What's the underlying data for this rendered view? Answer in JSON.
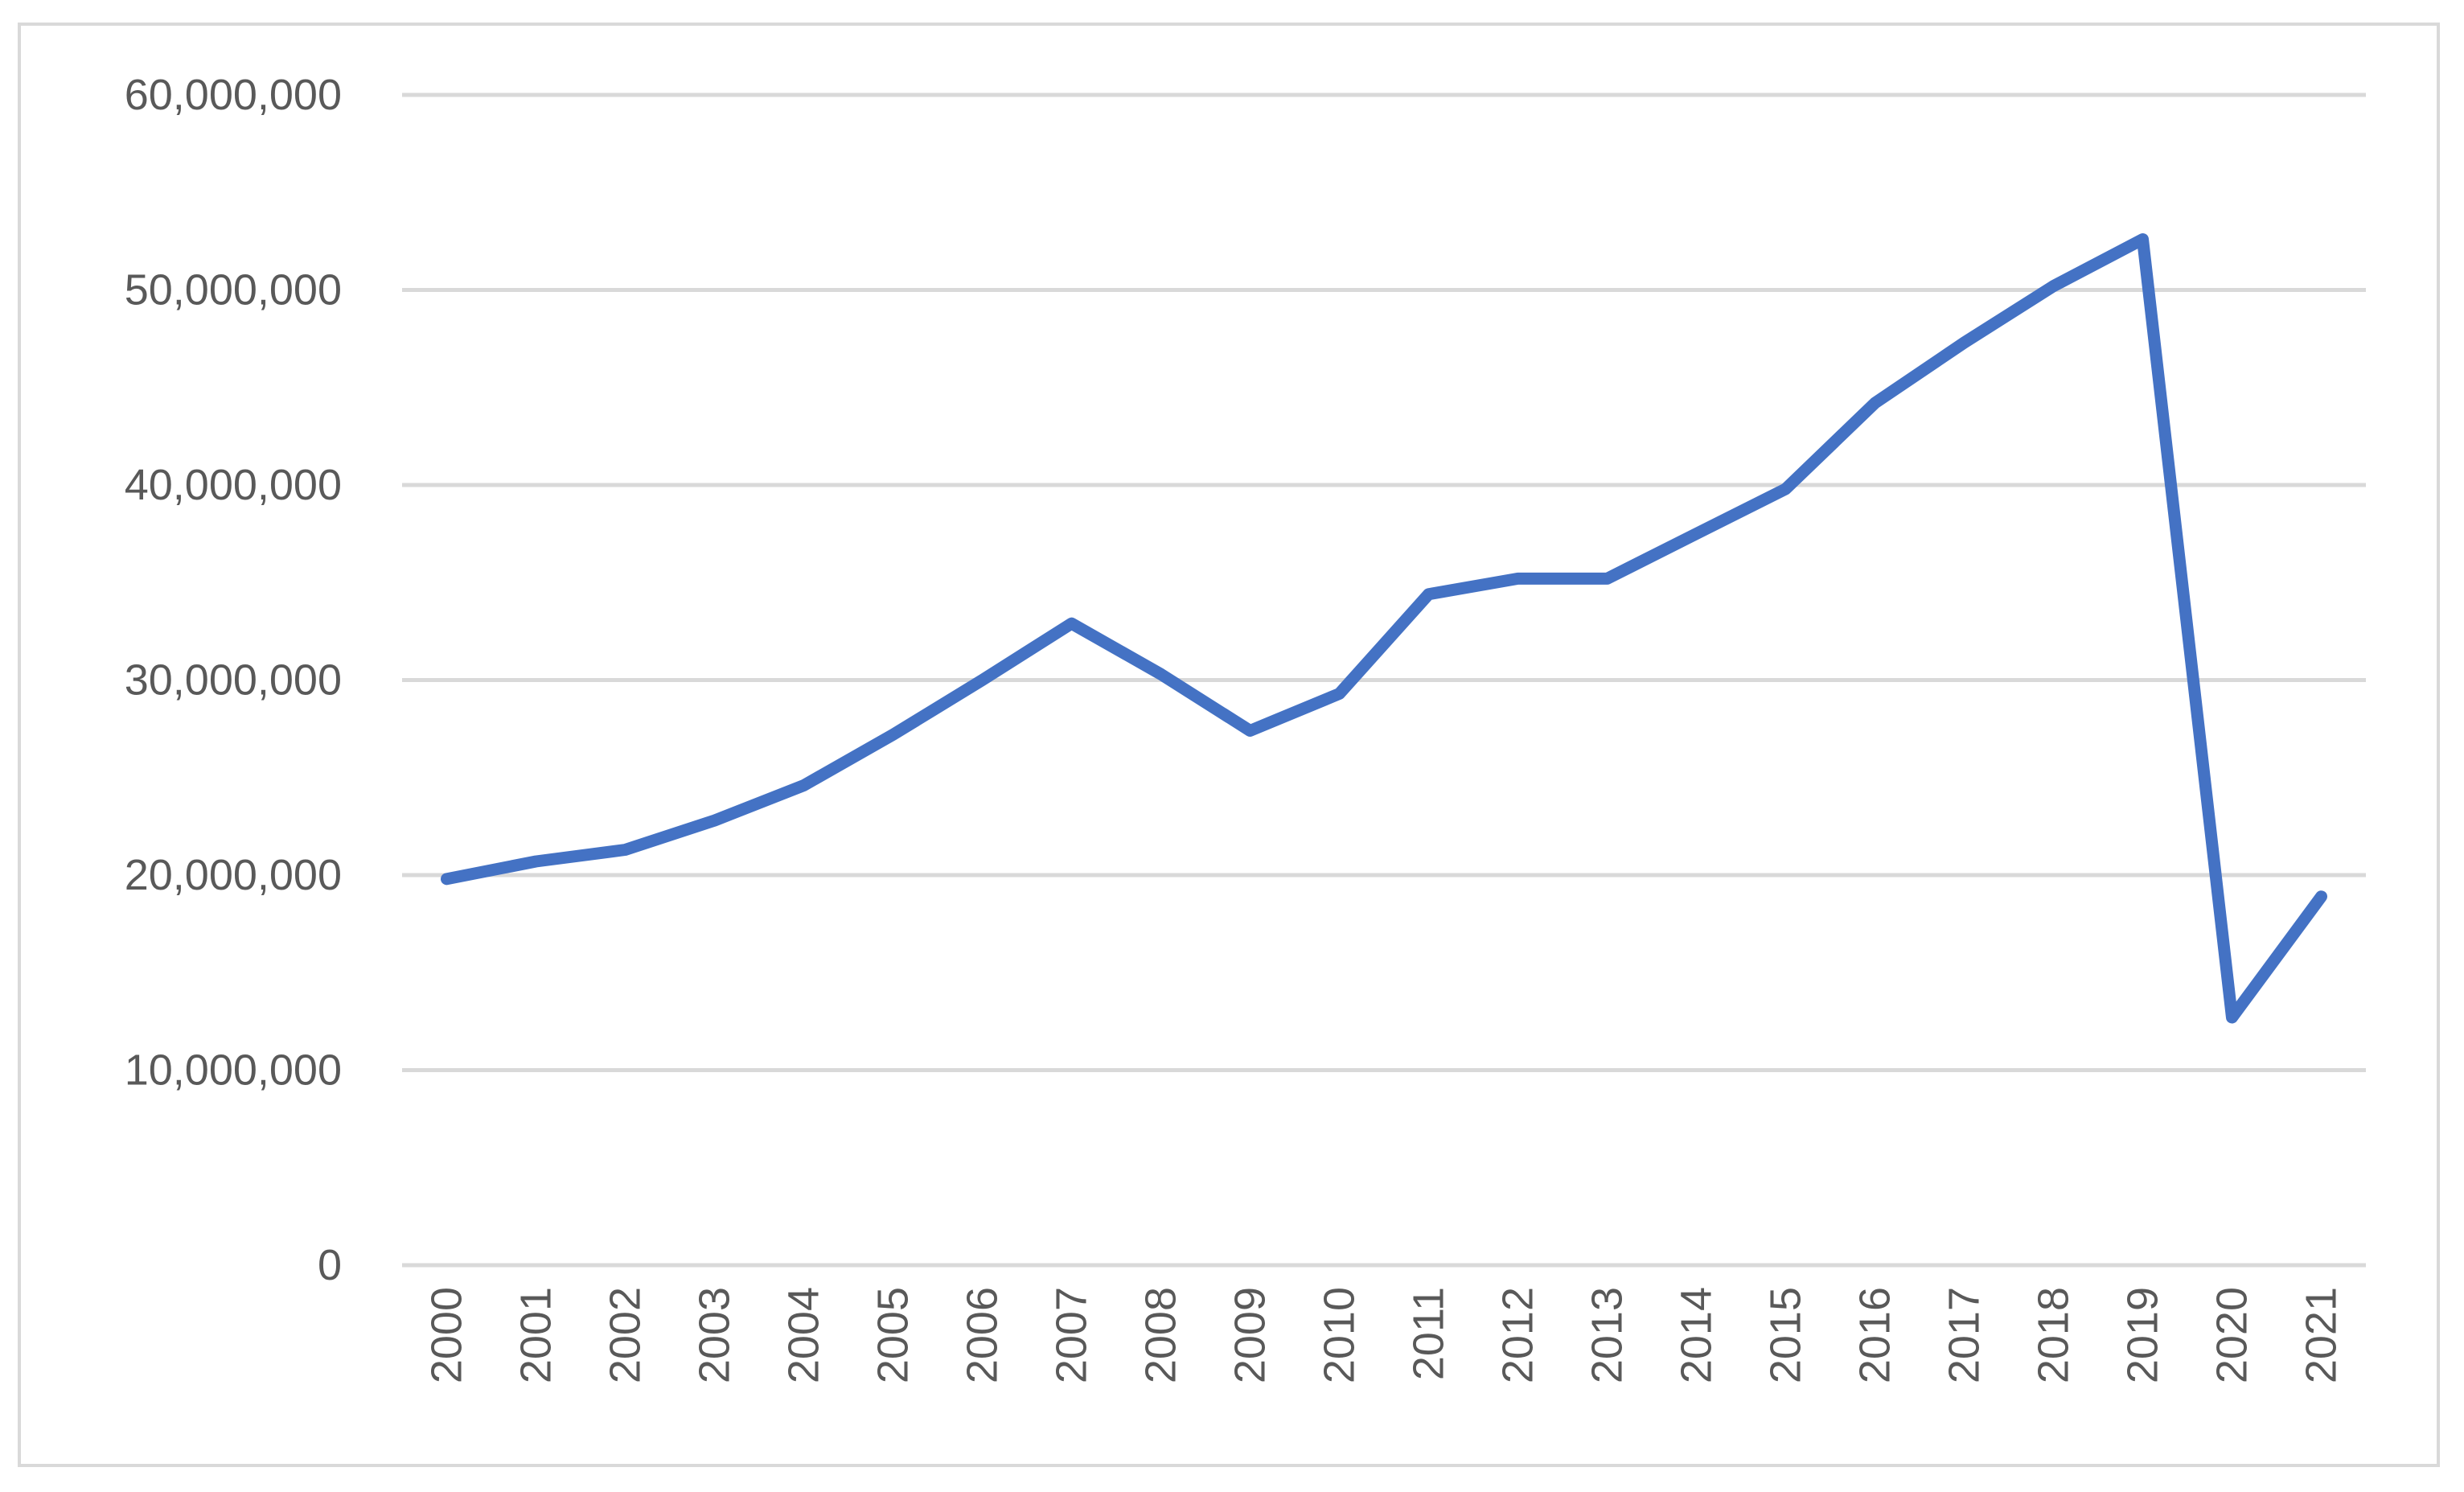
{
  "chart_data": {
    "type": "line",
    "title": "",
    "xlabel": "",
    "ylabel": "",
    "ylim": [
      0,
      60000000
    ],
    "y_ticks": [
      0,
      10000000,
      20000000,
      30000000,
      40000000,
      50000000,
      60000000
    ],
    "y_tick_labels": [
      "0",
      "10,000,000",
      "20,000,000",
      "30,000,000",
      "40,000,000",
      "50,000,000",
      "60,000,000"
    ],
    "categories": [
      "2000",
      "2001",
      "2002",
      "2003",
      "2004",
      "2005",
      "2006",
      "2007",
      "2008",
      "2009",
      "2010",
      "2011",
      "2012",
      "2013",
      "2014",
      "2015",
      "2016",
      "2017",
      "2018",
      "2019",
      "2020",
      "2021"
    ],
    "grid": "horizontal",
    "legend": "none",
    "series": [
      {
        "color": "#4472c4",
        "values": [
          19800000,
          20700000,
          21300000,
          22800000,
          24600000,
          27200000,
          30000000,
          32900000,
          30300000,
          27400000,
          29300000,
          34400000,
          35200000,
          35200000,
          37500000,
          39800000,
          44200000,
          47300000,
          50200000,
          52600000,
          12700000,
          18900000
        ]
      }
    ]
  }
}
